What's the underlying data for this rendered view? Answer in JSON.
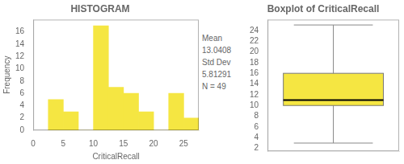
{
  "chart_data": [
    {
      "type": "histogram",
      "title": "HISTOGRAM",
      "x_label": "CriticalRecall",
      "y_label": "Frequency",
      "bins": [
        2.5,
        5,
        7.5,
        10,
        12.5,
        15,
        17.5,
        20,
        22.5,
        25,
        27.5
      ],
      "values": [
        5,
        3,
        0,
        17,
        7,
        6,
        3,
        0,
        6,
        2
      ],
      "color": "#f5e642",
      "xlim": [
        0,
        27.5
      ],
      "xticks": [
        0,
        5,
        10,
        15,
        20,
        25
      ],
      "ylim": [
        0,
        18
      ],
      "yticks": [
        0,
        2,
        4,
        6,
        8,
        10,
        12,
        14,
        16
      ],
      "grid": false,
      "annotations": [
        "Mean",
        "13.0408",
        "Std Dev",
        "5.81291",
        "N = 49"
      ]
    },
    {
      "type": "box",
      "title": "Boxplot of CriticalRecall",
      "q1": 10,
      "median": 11,
      "q3": 16,
      "whisker_low": 3,
      "whisker_high": 25,
      "color": "#f5e642",
      "ylim": [
        1.5,
        26
      ],
      "yticks": [
        2,
        4,
        6,
        8,
        10,
        12,
        14,
        16,
        18,
        20,
        22,
        24
      ],
      "grid": false,
      "tick_labels": "y"
    }
  ]
}
